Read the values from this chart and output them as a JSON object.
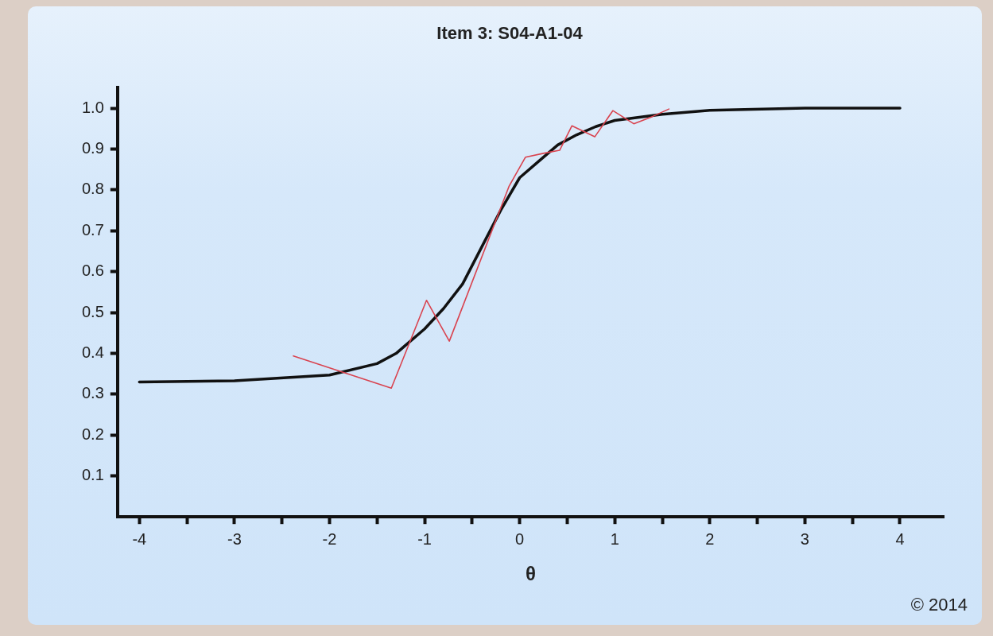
{
  "chart_data": {
    "type": "line",
    "title": "Item 3: S04-A1-04",
    "xlabel": "θ",
    "annotations": [
      "© 2014"
    ],
    "xlim": [
      -4.23,
      4.46
    ],
    "ylim": [
      0,
      1.05
    ],
    "xticks": [
      -4,
      {
        "value": -3.5,
        "label": null
      },
      -3,
      {
        "value": -2.5,
        "label": null
      },
      -2,
      {
        "value": -1.5,
        "label": null
      },
      -1,
      {
        "value": -0.5,
        "label": null
      },
      0,
      {
        "value": 0.5,
        "label": null
      },
      1,
      {
        "value": 1.5,
        "label": null
      },
      2,
      {
        "value": 2.5,
        "label": null
      },
      3,
      {
        "value": 3.5,
        "label": null
      },
      4
    ],
    "yticks": [
      0.1,
      0.2,
      0.3,
      0.4,
      0.5,
      0.6,
      0.7,
      0.8,
      0.9,
      {
        "value": 1,
        "label": "1.0"
      }
    ],
    "grid": false,
    "legend": false,
    "marker": "none",
    "line_style": "solid",
    "series": [
      {
        "color": "#d9434f",
        "x": [
          -2.38,
          -1.35,
          -0.98,
          -0.74,
          -0.11,
          0.06,
          0.26,
          0.42,
          0.55,
          0.79,
          0.98,
          1.2,
          1.4,
          1.57
        ],
        "values": [
          0.394,
          0.315,
          0.53,
          0.43,
          0.81,
          0.88,
          0.89,
          0.897,
          0.957,
          0.93,
          0.994,
          0.962,
          0.98,
          0.998
        ]
      },
      {
        "color": "#111111",
        "x": [
          -4,
          -3,
          -2,
          -1.5,
          -1.3,
          -1,
          -0.8,
          -0.6,
          -0.4,
          -0.2,
          0,
          0.2,
          0.4,
          0.6,
          0.8,
          1,
          1.5,
          2,
          3,
          4
        ],
        "values": [
          0.33,
          0.333,
          0.347,
          0.375,
          0.4,
          0.46,
          0.51,
          0.57,
          0.66,
          0.75,
          0.83,
          0.87,
          0.91,
          0.935,
          0.955,
          0.97,
          0.985,
          0.995,
          1,
          1
        ]
      }
    ]
  }
}
